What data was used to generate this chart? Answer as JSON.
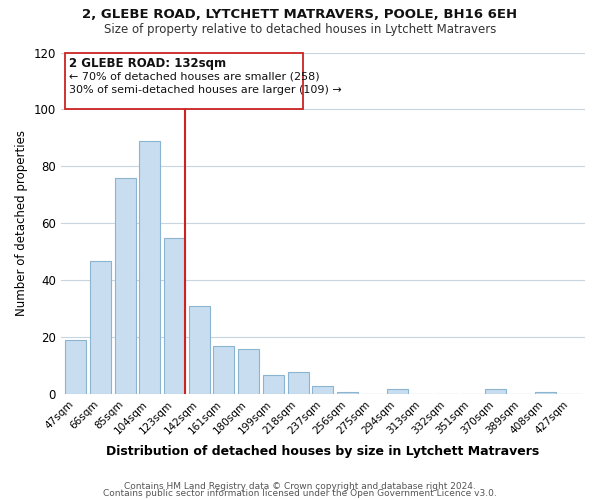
{
  "title": "2, GLEBE ROAD, LYTCHETT MATRAVERS, POOLE, BH16 6EH",
  "subtitle": "Size of property relative to detached houses in Lytchett Matravers",
  "xlabel": "Distribution of detached houses by size in Lytchett Matravers",
  "ylabel": "Number of detached properties",
  "categories": [
    "47sqm",
    "66sqm",
    "85sqm",
    "104sqm",
    "123sqm",
    "142sqm",
    "161sqm",
    "180sqm",
    "199sqm",
    "218sqm",
    "237sqm",
    "256sqm",
    "275sqm",
    "294sqm",
    "313sqm",
    "332sqm",
    "351sqm",
    "370sqm",
    "389sqm",
    "408sqm",
    "427sqm"
  ],
  "values": [
    19,
    47,
    76,
    89,
    55,
    31,
    17,
    16,
    7,
    8,
    3,
    1,
    0,
    2,
    0,
    0,
    0,
    2,
    0,
    1,
    0
  ],
  "bar_color": "#c8ddef",
  "bar_edge_color": "#8ab4d0",
  "highlight_color": "#cc2222",
  "annotation_title": "2 GLEBE ROAD: 132sqm",
  "annotation_line1": "← 70% of detached houses are smaller (258)",
  "annotation_line2": "30% of semi-detached houses are larger (109) →",
  "ylim": [
    0,
    120
  ],
  "yticks": [
    0,
    20,
    40,
    60,
    80,
    100,
    120
  ],
  "footer1": "Contains HM Land Registry data © Crown copyright and database right 2024.",
  "footer2": "Contains public sector information licensed under the Open Government Licence v3.0.",
  "background_color": "#ffffff",
  "grid_color": "#c8d4de"
}
